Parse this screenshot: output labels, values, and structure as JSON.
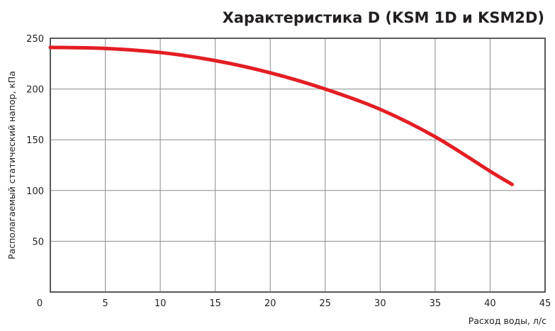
{
  "chart_data": {
    "type": "line",
    "title": "Характеристика D (KSM 1D и KSM2D)",
    "xlabel": "Расход воды, л/с",
    "ylabel": "Располагаемый статический напор, кПа",
    "xlim": [
      0,
      45
    ],
    "ylim": [
      0,
      250
    ],
    "x_ticks": [
      0,
      5,
      10,
      15,
      20,
      25,
      30,
      35,
      40,
      45
    ],
    "y_ticks": [
      50,
      100,
      150,
      200,
      250
    ],
    "grid": true,
    "legend": "none",
    "series": [
      {
        "color": "#e31e24",
        "x": [
          0,
          5,
          10,
          15,
          20,
          25,
          30,
          35,
          40,
          42
        ],
        "y": [
          241,
          240,
          236,
          228,
          216,
          200,
          180,
          153,
          119,
          106
        ]
      }
    ]
  }
}
